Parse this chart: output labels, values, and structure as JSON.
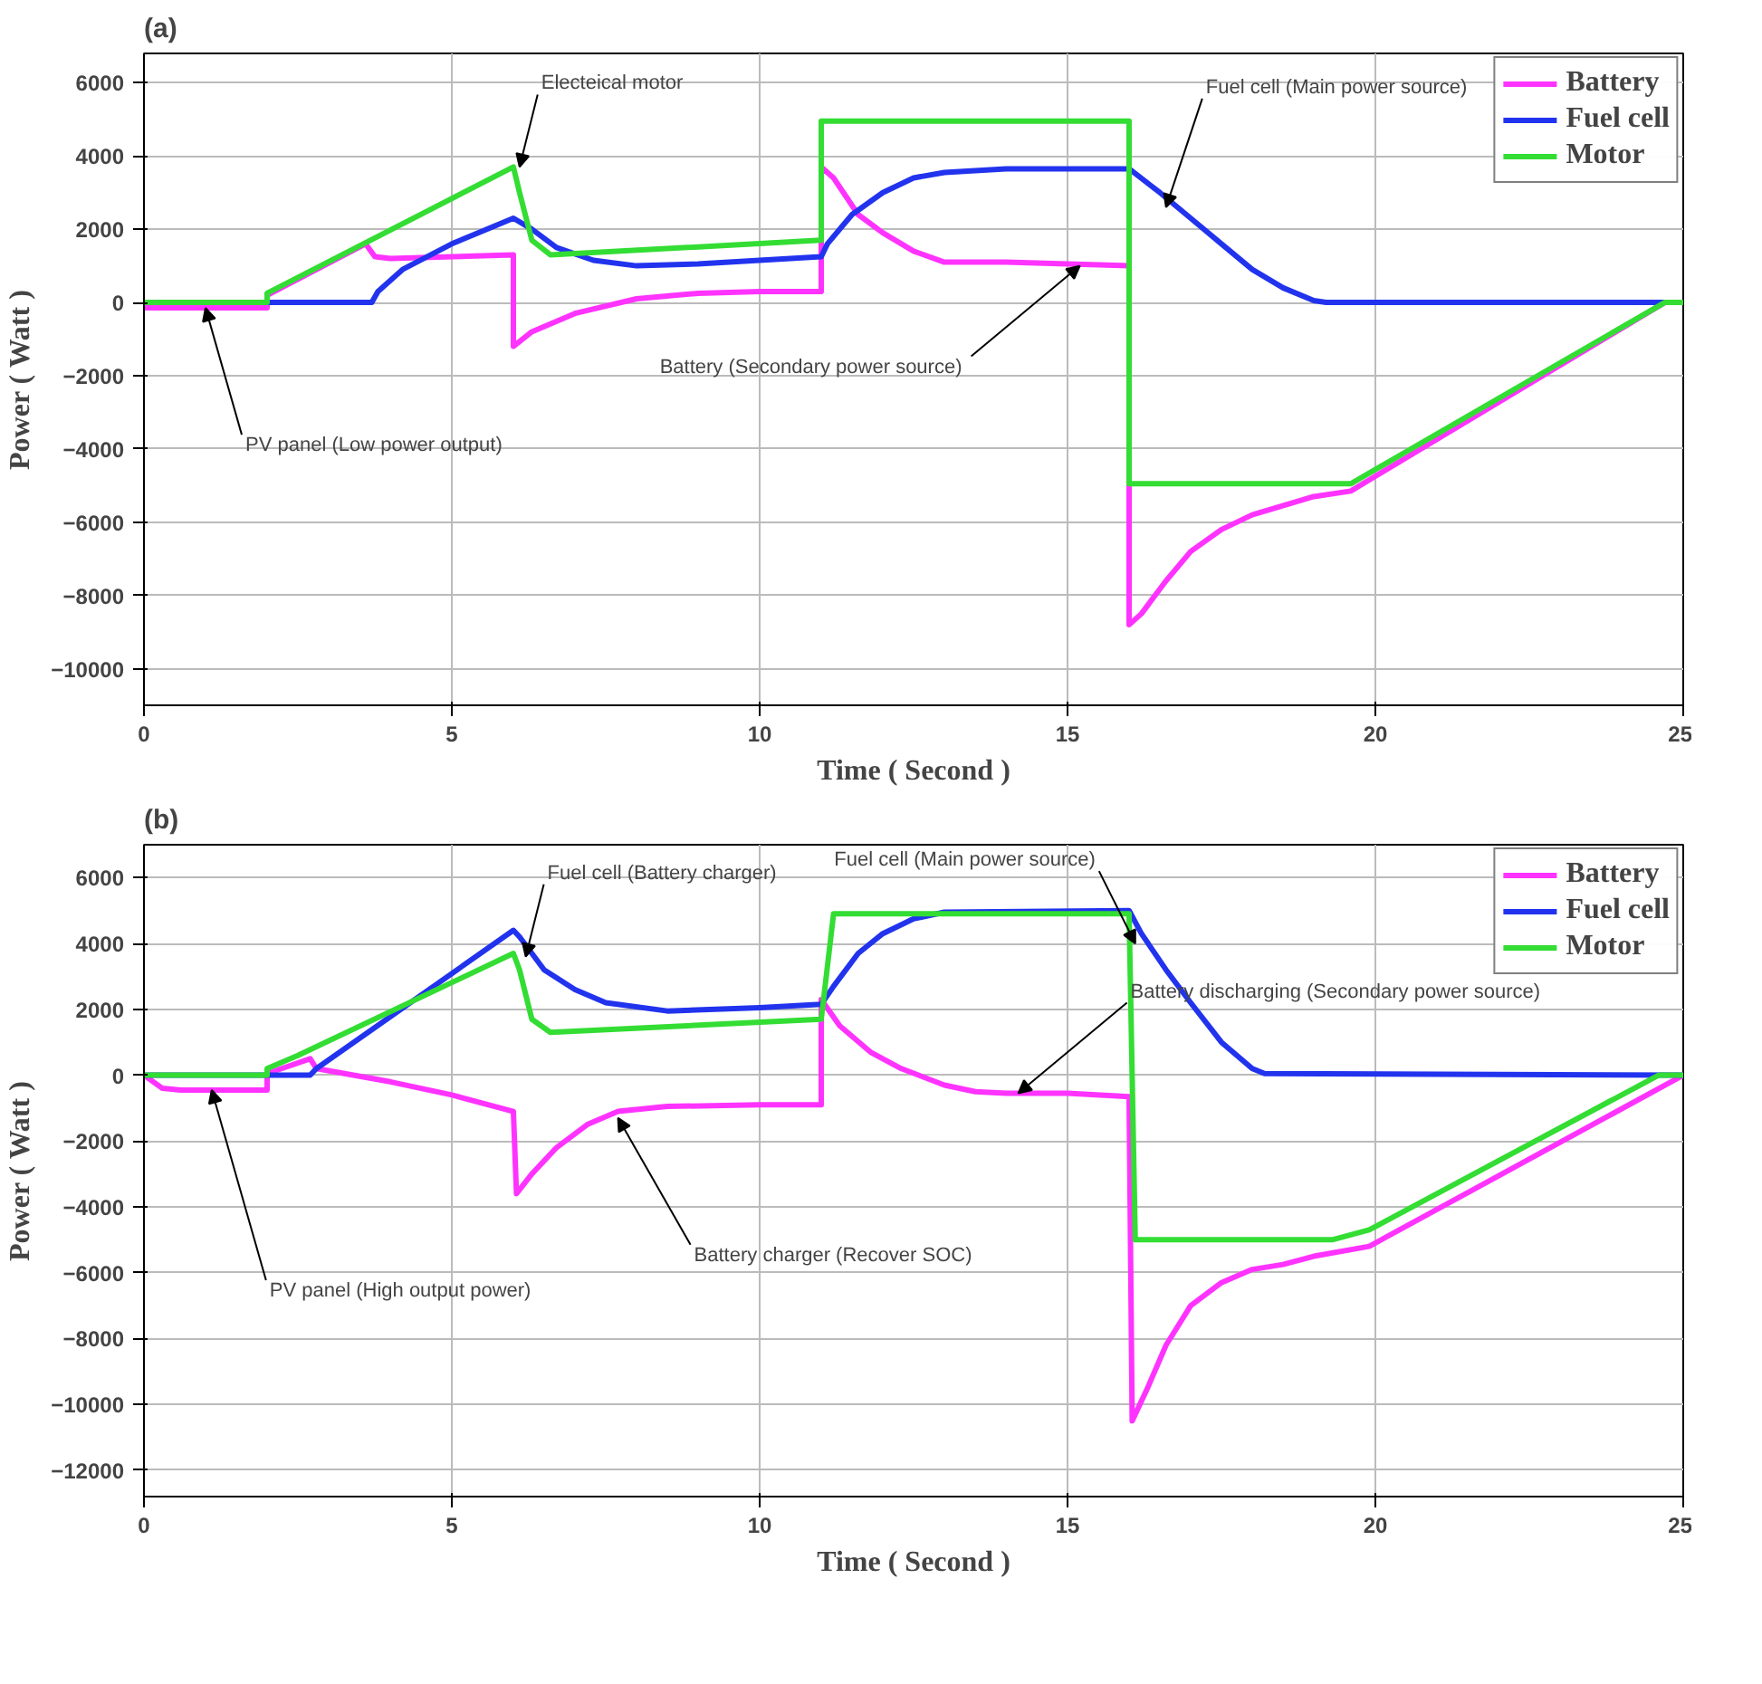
{
  "chart_data": [
    {
      "type": "line",
      "title": "(a)",
      "xlabel": "Time ( Second )",
      "ylabel": "Power ( Watt )",
      "xlim": [
        0,
        25
      ],
      "xticks": [
        0,
        5,
        10,
        15,
        20,
        25
      ],
      "ylim": [
        -11000,
        6800
      ],
      "yticks": [
        -10000,
        -8000,
        -6000,
        -4000,
        -2000,
        0,
        2000,
        4000,
        6000
      ],
      "grid": true,
      "legend": "top right",
      "line_style": "solid",
      "series": [
        {
          "name": "Battery",
          "color": "#ff33ff",
          "x": [
            0,
            2,
            2,
            3.6,
            3.75,
            4,
            6,
            6,
            6.3,
            7,
            8,
            9,
            10,
            11,
            11,
            11.2,
            11.6,
            12,
            12.5,
            13,
            14,
            15,
            16,
            16,
            16.2,
            16.6,
            17,
            17.5,
            18,
            19,
            19.6,
            24.7,
            25
          ],
          "values": [
            -150,
            -150,
            200,
            1600,
            1250,
            1200,
            1300,
            -1200,
            -800,
            -300,
            100,
            250,
            300,
            300,
            3700,
            3400,
            2400,
            1900,
            1400,
            1100,
            1100,
            1050,
            1000,
            -8800,
            -8500,
            -7600,
            -6800,
            -6200,
            -5800,
            -5300,
            -5150,
            0,
            0
          ]
        },
        {
          "name": "Fuel cell",
          "color": "#2233ee",
          "x": [
            0,
            3.7,
            3.8,
            4.2,
            5,
            6,
            6.3,
            6.7,
            7.3,
            8,
            9,
            10,
            11,
            11.1,
            11.5,
            12,
            12.5,
            13,
            14,
            16,
            16.5,
            17,
            17.5,
            18,
            18.5,
            19,
            19.2,
            25
          ],
          "values": [
            0,
            0,
            300,
            900,
            1600,
            2300,
            2000,
            1500,
            1150,
            1000,
            1050,
            1150,
            1250,
            1600,
            2400,
            3000,
            3400,
            3550,
            3650,
            3650,
            3000,
            2300,
            1600,
            900,
            400,
            50,
            0,
            0
          ]
        },
        {
          "name": "Motor",
          "color": "#33dd33",
          "x": [
            0,
            2,
            2,
            6,
            6.1,
            6.3,
            6.6,
            11,
            11,
            16,
            16,
            19.6,
            24.7,
            25
          ],
          "values": [
            0,
            0,
            250,
            3700,
            3000,
            1700,
            1300,
            1700,
            4950,
            4950,
            -4950,
            -4950,
            0,
            0
          ]
        }
      ],
      "annotations": [
        {
          "text": "Electeical motor",
          "x": 6.1,
          "y": 3700
        },
        {
          "text": "Fuel cell (Main power source)",
          "x": 16.6,
          "y": 2600
        },
        {
          "text": "Battery (Secondary  power source)",
          "x": 15.2,
          "y": 1000
        },
        {
          "text": "PV panel (Low power output)",
          "x": 1,
          "y": -150
        }
      ]
    },
    {
      "type": "line",
      "title": "(b)",
      "xlabel": "Time ( Second )",
      "ylabel": "Power ( Watt )",
      "xlim": [
        0,
        25
      ],
      "xticks": [
        0,
        5,
        10,
        15,
        20,
        25
      ],
      "ylim": [
        -12800,
        7000
      ],
      "yticks": [
        -12000,
        -10000,
        -8000,
        -6000,
        -4000,
        -2000,
        0,
        2000,
        4000,
        6000
      ],
      "grid": true,
      "legend": "top right",
      "line_style": "solid",
      "series": [
        {
          "name": "Battery",
          "color": "#ff33ff",
          "x": [
            0,
            0.3,
            0.6,
            2,
            2,
            2.7,
            2.8,
            4,
            5,
            6,
            6.05,
            6.3,
            6.7,
            7.2,
            7.7,
            8.5,
            10,
            11,
            11,
            11.3,
            11.8,
            12.3,
            13,
            13.5,
            14,
            15,
            16,
            16.05,
            16.3,
            16.6,
            17,
            17.5,
            18,
            18.5,
            19,
            19.9,
            25
          ],
          "values": [
            0,
            -400,
            -450,
            -450,
            50,
            500,
            200,
            -200,
            -600,
            -1100,
            -3600,
            -3000,
            -2200,
            -1500,
            -1100,
            -950,
            -900,
            -900,
            2300,
            1500,
            700,
            200,
            -300,
            -500,
            -550,
            -550,
            -650,
            -10500,
            -9500,
            -8200,
            -7000,
            -6300,
            -5900,
            -5750,
            -5500,
            -5200,
            0
          ]
        },
        {
          "name": "Fuel cell",
          "color": "#2233ee",
          "x": [
            0,
            2.7,
            2.8,
            6,
            6.1,
            6.5,
            7,
            7.5,
            8.5,
            10,
            11,
            11.2,
            11.6,
            12,
            12.5,
            13,
            16,
            16.2,
            16.6,
            17,
            17.5,
            18,
            18.2,
            25
          ],
          "values": [
            0,
            0,
            200,
            4400,
            4200,
            3200,
            2600,
            2200,
            1950,
            2050,
            2150,
            2700,
            3700,
            4300,
            4750,
            4950,
            5000,
            4300,
            3200,
            2200,
            1000,
            200,
            50,
            0
          ]
        },
        {
          "name": "Motor",
          "color": "#33dd33",
          "x": [
            0,
            2,
            2,
            2.5,
            6,
            6.1,
            6.3,
            6.6,
            11,
            11.2,
            16,
            16.1,
            19.3,
            19.9,
            24.6,
            25
          ],
          "values": [
            0,
            0,
            200,
            600,
            3700,
            3200,
            1700,
            1300,
            1700,
            4900,
            4900,
            -5000,
            -5000,
            -4700,
            0,
            0
          ]
        }
      ],
      "annotations": [
        {
          "text": "Fuel cell (Battery charger)",
          "x": 6.2,
          "y": 3600
        },
        {
          "text": "Fuel cell (Main power source)",
          "x": 16.1,
          "y": 4000
        },
        {
          "text": "Battery discharging (Secondary power source)",
          "x": 14.2,
          "y": -550
        },
        {
          "text": "Battery charger (Recover SOC)",
          "x": 7.7,
          "y": -1300
        },
        {
          "text": "PV panel (High output power)",
          "x": 1.1,
          "y": -450
        }
      ]
    }
  ]
}
